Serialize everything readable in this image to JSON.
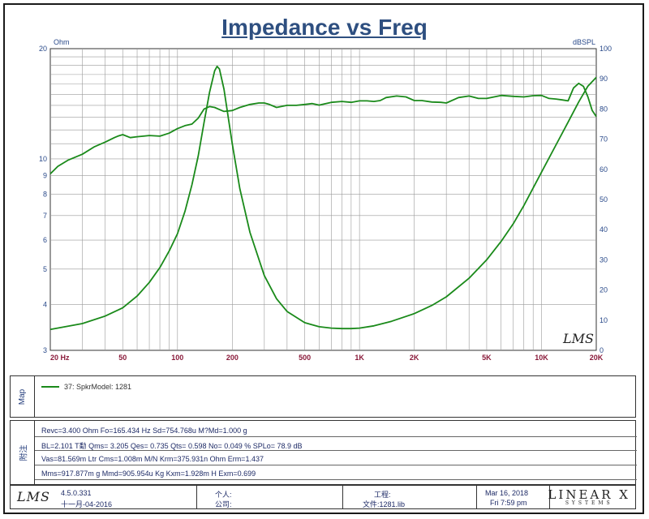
{
  "title": "Impedance vs Freq",
  "colors": {
    "curve": "#1a8a1a",
    "title": "#2e4f80",
    "left_axis_text": "#2a4a8a",
    "x_axis_text": "#8a1a3a",
    "right_axis_text": "#2a4a8a",
    "grid": "#9a9a9a"
  },
  "chart_data": {
    "type": "line",
    "title": "Impedance vs Freq",
    "xscale": "log",
    "xlim": [
      20,
      20000
    ],
    "x_ticks": [
      20,
      50,
      100,
      200,
      500,
      1000,
      2000,
      5000,
      10000,
      20000
    ],
    "x_tick_labels": [
      "20  Hz",
      "50",
      "100",
      "200",
      "500",
      "1K",
      "2K",
      "5K",
      "10K",
      "20K"
    ],
    "left_axis": {
      "label": "Ohm",
      "scale": "log",
      "lim": [
        3,
        20
      ],
      "ticks": [
        3,
        4,
        5,
        6,
        7,
        8,
        9,
        10,
        20
      ],
      "tick_labels": [
        "3",
        "4",
        "5",
        "6",
        "7",
        "8",
        "9",
        "10",
        "20"
      ]
    },
    "right_axis": {
      "label": "dBSPL",
      "scale": "linear",
      "lim": [
        0,
        100
      ],
      "ticks": [
        0,
        10,
        20,
        30,
        40,
        50,
        60,
        70,
        80,
        90,
        100
      ],
      "tick_labels": [
        "0",
        "10",
        "20",
        "30",
        "40",
        "50",
        "60",
        "70",
        "80",
        "90",
        "100"
      ]
    },
    "grid": true,
    "watermark": "LMS",
    "series": [
      {
        "axis": "left",
        "x": [
          20,
          30,
          40,
          50,
          60,
          70,
          80,
          90,
          100,
          110,
          120,
          130,
          140,
          150,
          160,
          165,
          170,
          180,
          190,
          200,
          220,
          250,
          300,
          350,
          400,
          500,
          600,
          700,
          800,
          900,
          1000,
          1200,
          1500,
          2000,
          2500,
          3000,
          4000,
          5000,
          6000,
          7000,
          8000,
          10000,
          12000,
          14000,
          16000,
          18000,
          20000
        ],
        "y": [
          3.42,
          3.55,
          3.72,
          3.92,
          4.22,
          4.6,
          5.05,
          5.6,
          6.25,
          7.2,
          8.5,
          10.2,
          12.6,
          15.2,
          17.4,
          17.9,
          17.6,
          15.5,
          13.0,
          11.0,
          8.3,
          6.3,
          4.8,
          4.15,
          3.83,
          3.57,
          3.48,
          3.45,
          3.44,
          3.44,
          3.45,
          3.5,
          3.6,
          3.78,
          3.98,
          4.2,
          4.72,
          5.3,
          5.95,
          6.65,
          7.45,
          9.2,
          10.9,
          12.6,
          14.3,
          15.8,
          16.7
        ]
      },
      {
        "axis": "right",
        "x": [
          20,
          22,
          25,
          30,
          35,
          40,
          45,
          47,
          50,
          55,
          60,
          65,
          70,
          80,
          90,
          100,
          110,
          120,
          130,
          140,
          150,
          160,
          170,
          180,
          200,
          220,
          250,
          280,
          300,
          320,
          350,
          400,
          450,
          500,
          550,
          600,
          700,
          800,
          900,
          1000,
          1100,
          1200,
          1300,
          1400,
          1600,
          1800,
          2000,
          2200,
          2500,
          2800,
          3000,
          3500,
          4000,
          4500,
          5000,
          6000,
          7000,
          8000,
          9000,
          10000,
          11000,
          12000,
          13000,
          14000,
          15000,
          16000,
          17000,
          18000,
          19000,
          20000
        ],
        "y": [
          58.5,
          61,
          63,
          65,
          67.5,
          69,
          70.5,
          71,
          71.5,
          70.5,
          70.8,
          71,
          71.2,
          71,
          72,
          73.5,
          74.5,
          75,
          77,
          80,
          80.8,
          80.5,
          79.8,
          79.2,
          79.5,
          80.5,
          81.5,
          82,
          82,
          81.5,
          80.5,
          81.2,
          81.2,
          81.5,
          81.8,
          81.3,
          82.2,
          82.5,
          82.2,
          82.7,
          82.7,
          82.5,
          82.8,
          83.8,
          84.3,
          84,
          82.8,
          82.8,
          82.3,
          82.2,
          82.0,
          83.8,
          84.3,
          83.5,
          83.5,
          84.5,
          84.2,
          84.0,
          84.4,
          84.5,
          83.5,
          83.3,
          83.0,
          82.7,
          87,
          88.5,
          87.5,
          84,
          79.5,
          77.5
        ]
      }
    ]
  },
  "map_panel": {
    "side_label": "Map",
    "legend_entry": "37: SpkrModel: 1281"
  },
  "params_panel": {
    "side_label": "附注",
    "rows": [
      "Revc=3.400 Ohm  Fo=165.434 Hz  Sd=754.768u  M?Md=1.000 g",
      "BL=2.101 T勫  Qms= 3.205  Qes= 0.735  Qts= 0.598  No= 0.049 %  SPLo= 78.9 dB",
      "Vas=81.569m Ltr  Cms=1.008m M/N  Krm=375.931n Ohm  Erm=1.437",
      "Mms=917.877m g  Mmd=905.954u Kg  Kxm=1.928m H  Exm=0.699"
    ]
  },
  "footer": {
    "logo": "LMS",
    "version": "4.5.0.331",
    "date_cn": "十一月-04-2016",
    "person_label": "个人:",
    "company_label": "公司:",
    "project_label": "工程:",
    "file_label": "文件:1281.lib",
    "date": "Mar 16, 2018",
    "time": "Fri  7:59 pm",
    "brand": "LINEAR X",
    "brand_sub": "SYSTEMS"
  }
}
